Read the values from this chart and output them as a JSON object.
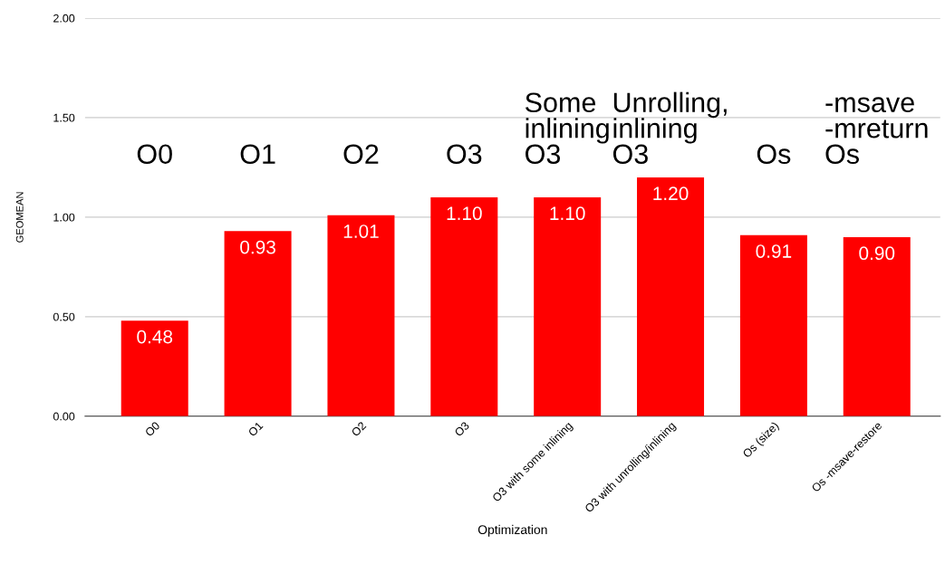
{
  "chart_data": {
    "type": "bar",
    "xlabel": "Optimization",
    "ylabel": "GEOMEAN",
    "categories": [
      "O0",
      "O1",
      "O2",
      "O3",
      "O3 with some inlining",
      "O3 with unrolling/inlining",
      "Os (size)",
      "Os -msave-restore"
    ],
    "values": [
      0.48,
      0.93,
      1.01,
      1.1,
      1.1,
      1.2,
      0.91,
      0.9
    ],
    "color": "#ff0000",
    "ylim": [
      0,
      2
    ],
    "yticks": [
      {
        "value": 0,
        "label": "0.00"
      },
      {
        "value": 0.5,
        "label": "0.50"
      },
      {
        "value": 1,
        "label": "1.00"
      },
      {
        "value": 1.5,
        "label": "1.50"
      },
      {
        "value": 2,
        "label": "2.00"
      }
    ],
    "grid": "y",
    "value_labels": [
      "0.48",
      "0.93",
      "1.01",
      "1.10",
      "1.10",
      "1.20",
      "0.91",
      "0.90"
    ],
    "annotations": [
      "O0",
      "O1",
      "O2",
      "O3",
      "Some\ninlining\nO3",
      "Unrolling,\ninlining\nO3",
      "Os",
      "-msave\n-mreturn\nOs"
    ]
  }
}
